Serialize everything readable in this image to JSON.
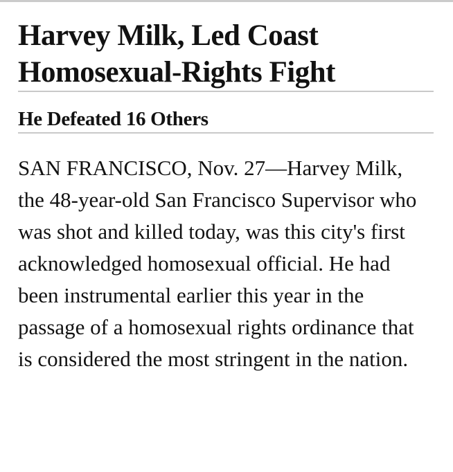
{
  "colors": {
    "background": "#ffffff",
    "text": "#121212",
    "top_rule": "#cbcbcb",
    "rule": "#c9c9c9"
  },
  "article": {
    "headline": {
      "full": "Harvey Milk, Led Coast Homosexual-Rights Fight",
      "lines": [
        "Harvey Milk, Led Coast",
        "Homosexual-Rights Fight"
      ]
    },
    "subheadline": "He Defeated 16 Others",
    "body_paragraph": "SAN FRANCISCO, Nov. 27—Harvey Milk, the 48-year-old San Francisco Supervisor who was shot and killed today, was this city's first acknowledged homosexual official. He had been instrumental earlier this year in the passage of a homosexual rights ordinance that is considered the most stringent in the nation."
  }
}
